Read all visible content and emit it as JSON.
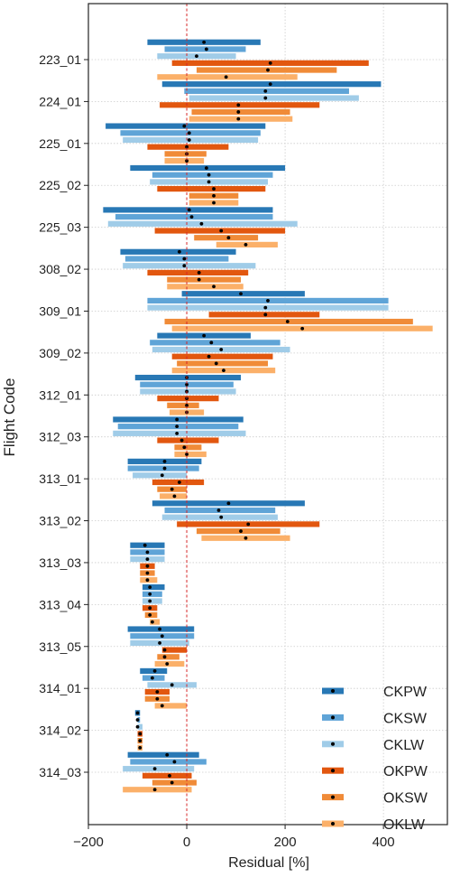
{
  "chart_data": {
    "type": "bar",
    "orientation": "horizontal-range",
    "title": "",
    "xlabel": "Residual [%]",
    "ylabel": "Flight Code",
    "xlim": [
      -200,
      530
    ],
    "xticks": [
      -200,
      0,
      200,
      400
    ],
    "reference_line": {
      "x": 0,
      "style": "dashed",
      "color": "#d62728"
    },
    "grid": "vertical + horizontal dotted",
    "legend_position": "bottom-right",
    "categories": [
      "223_01",
      "224_01",
      "225_01",
      "225_02",
      "225_03",
      "308_02",
      "309_01",
      "309_02",
      "312_01",
      "312_03",
      "313_01",
      "313_02",
      "313_03",
      "313_04",
      "313_05",
      "314_01",
      "314_02",
      "314_03"
    ],
    "series": [
      {
        "name": "CKPW",
        "color": "#2878b5",
        "low": [
          -80,
          -50,
          -165,
          -115,
          -170,
          -135,
          -10,
          -60,
          -105,
          -150,
          -120,
          -70,
          -115,
          -90,
          -120,
          -95,
          -105,
          -120
        ],
        "high": [
          150,
          395,
          160,
          200,
          175,
          100,
          240,
          130,
          110,
          115,
          30,
          240,
          -45,
          -45,
          15,
          -40,
          -95,
          25
        ],
        "mean": [
          35,
          170,
          -5,
          40,
          5,
          -15,
          110,
          35,
          0,
          -20,
          -45,
          85,
          -85,
          -75,
          -55,
          -65,
          -100,
          -40
        ]
      },
      {
        "name": "CKSW",
        "color": "#5fa4d7",
        "low": [
          -45,
          -5,
          -135,
          -70,
          -145,
          -125,
          -80,
          -75,
          -95,
          -140,
          -120,
          -45,
          -115,
          -90,
          -115,
          -90,
          -100,
          -115
        ],
        "high": [
          120,
          330,
          150,
          175,
          175,
          85,
          410,
          190,
          95,
          105,
          25,
          180,
          -45,
          -50,
          15,
          -45,
          -95,
          40
        ],
        "mean": [
          40,
          160,
          5,
          45,
          10,
          -5,
          165,
          50,
          0,
          -20,
          -45,
          65,
          -80,
          -75,
          -50,
          -70,
          -100,
          -25
        ]
      },
      {
        "name": "CKLW",
        "color": "#a0cce8",
        "low": [
          -60,
          5,
          -130,
          -75,
          -160,
          -130,
          -80,
          -70,
          -95,
          -150,
          -110,
          -50,
          -115,
          -90,
          -115,
          -80,
          -100,
          -130
        ],
        "high": [
          100,
          350,
          145,
          165,
          225,
          140,
          410,
          210,
          100,
          120,
          0,
          185,
          -45,
          -50,
          5,
          20,
          -90,
          15
        ],
        "mean": [
          20,
          160,
          5,
          45,
          30,
          -5,
          160,
          70,
          0,
          -20,
          -50,
          70,
          -80,
          -75,
          -55,
          -30,
          -100,
          -65
        ]
      },
      {
        "name": "OKPW",
        "color": "#e2570f",
        "low": [
          -30,
          -55,
          -80,
          -60,
          -65,
          -80,
          45,
          -30,
          -60,
          -60,
          -70,
          -20,
          -95,
          -90,
          -50,
          -85,
          -100,
          -90
        ],
        "high": [
          370,
          270,
          85,
          160,
          200,
          125,
          270,
          175,
          65,
          65,
          35,
          270,
          -65,
          -60,
          0,
          -35,
          -90,
          10
        ],
        "mean": [
          170,
          105,
          0,
          55,
          70,
          25,
          160,
          45,
          0,
          -10,
          -15,
          125,
          -80,
          -75,
          -45,
          -60,
          -95,
          -35
        ]
      },
      {
        "name": "OKSW",
        "color": "#f08b38",
        "low": [
          20,
          10,
          -45,
          5,
          15,
          -40,
          -45,
          -20,
          -40,
          -25,
          -60,
          20,
          -95,
          -85,
          -60,
          -85,
          -100,
          -70
        ],
        "high": [
          305,
          210,
          40,
          105,
          145,
          110,
          460,
          165,
          25,
          30,
          0,
          190,
          -65,
          -60,
          -15,
          -35,
          -90,
          20
        ],
        "mean": [
          165,
          105,
          0,
          55,
          85,
          25,
          205,
          60,
          0,
          -5,
          -30,
          110,
          -80,
          -75,
          -45,
          -60,
          -95,
          -30
        ]
      },
      {
        "name": "OKLW",
        "color": "#fbb069",
        "low": [
          -60,
          5,
          -45,
          5,
          60,
          -40,
          -30,
          -30,
          -35,
          -25,
          -55,
          30,
          -95,
          -75,
          -65,
          -65,
          -100,
          -130
        ],
        "high": [
          225,
          215,
          35,
          105,
          185,
          115,
          500,
          180,
          35,
          40,
          0,
          210,
          -60,
          -55,
          -5,
          0,
          -90,
          10
        ],
        "mean": [
          80,
          105,
          0,
          55,
          120,
          55,
          235,
          75,
          0,
          0,
          -25,
          120,
          -80,
          -70,
          -40,
          -50,
          -95,
          -65
        ]
      }
    ]
  }
}
